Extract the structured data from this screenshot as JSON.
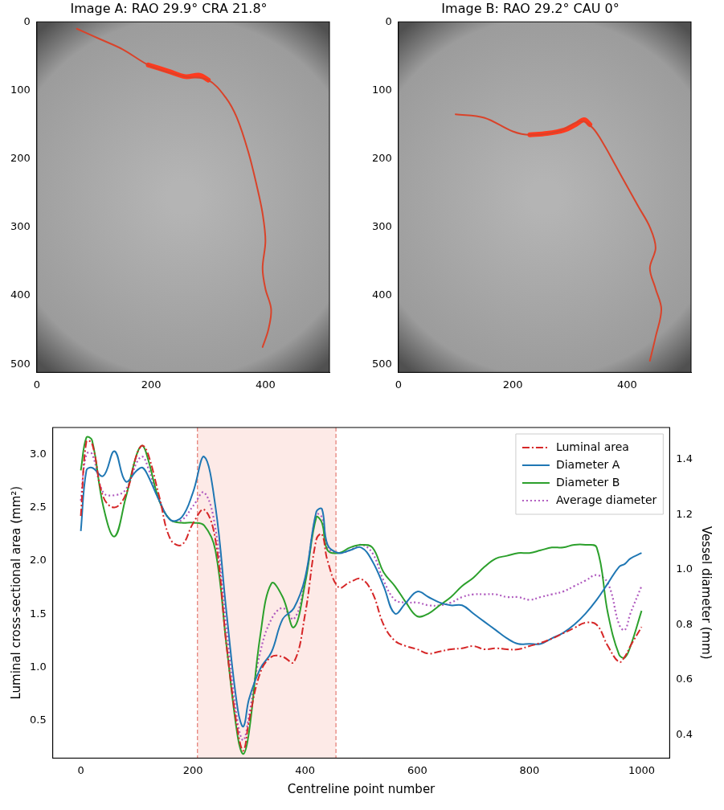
{
  "chart_data": [
    {
      "type": "line",
      "title": "Image A: RAO 29.9° CRA 21.8°",
      "xlim": [
        0,
        512
      ],
      "ylim": [
        512,
        0
      ],
      "xticks": [
        0,
        200,
        400
      ],
      "yticks": [
        0,
        100,
        200,
        300,
        400,
        500
      ],
      "grid": false,
      "series": [
        {
          "color": "#d9432a",
          "line_style": "solid",
          "x": [
            70,
            110,
            150,
            200,
            260,
            300,
            330,
            350,
            370,
            385,
            395,
            400,
            395,
            400,
            410,
            405,
            395
          ],
          "values": [
            10,
            25,
            40,
            65,
            80,
            85,
            110,
            140,
            190,
            240,
            280,
            320,
            360,
            390,
            420,
            450,
            475
          ]
        },
        {
          "color": "#ff3b1f",
          "line_style": "thick",
          "x": [
            195,
            230,
            260,
            285,
            300
          ],
          "values": [
            63,
            72,
            80,
            78,
            85
          ]
        }
      ]
    },
    {
      "type": "line",
      "title": "Image B: RAO 29.2° CAU 0°",
      "xlim": [
        0,
        512
      ],
      "ylim": [
        512,
        0
      ],
      "xticks": [
        0,
        200,
        400
      ],
      "yticks": [
        0,
        100,
        200,
        300,
        400,
        500
      ],
      "grid": false,
      "series": [
        {
          "color": "#d9432a",
          "line_style": "solid",
          "x": [
            100,
            150,
            200,
            230,
            280,
            320,
            340,
            360,
            380,
            400,
            420,
            440,
            450,
            440,
            450,
            460,
            450,
            440
          ],
          "values": [
            135,
            140,
            160,
            165,
            160,
            145,
            155,
            180,
            210,
            240,
            270,
            300,
            330,
            360,
            390,
            420,
            460,
            495
          ]
        },
        {
          "color": "#ff3b1f",
          "line_style": "thick",
          "x": [
            230,
            260,
            290,
            310,
            325,
            335
          ],
          "values": [
            165,
            163,
            158,
            150,
            143,
            150
          ]
        }
      ]
    },
    {
      "type": "line",
      "x_label": "Centreline point number",
      "y_label": "Luminal cross-sectional area (mm²)",
      "y2_label": "Vessel diameter (mm)",
      "xlim": [
        -50,
        1050
      ],
      "xticks": [
        0,
        200,
        400,
        600,
        800,
        1000
      ],
      "ylim": [
        0.15,
        3.25
      ],
      "yticks": [
        0.5,
        {
          "value": 1,
          "label": "1.0"
        },
        1.5,
        {
          "value": 2,
          "label": "2.0"
        },
        2.5,
        {
          "value": 3,
          "label": "3.0"
        }
      ],
      "y2lim": [
        0.315,
        1.516
      ],
      "y2ticks": [
        0.4,
        0.6,
        0.8,
        {
          "value": 1,
          "label": "1.0"
        },
        1.2,
        1.4
      ],
      "grid": false,
      "legend": "upper right",
      "highlight": [
        208,
        455
      ],
      "x": [
        0,
        10,
        20,
        40,
        60,
        80,
        100,
        110,
        120,
        140,
        160,
        180,
        200,
        220,
        240,
        260,
        280,
        290,
        300,
        320,
        340,
        360,
        380,
        400,
        420,
        430,
        440,
        460,
        480,
        500,
        520,
        540,
        560,
        580,
        600,
        620,
        640,
        660,
        680,
        700,
        720,
        740,
        760,
        780,
        800,
        820,
        840,
        860,
        880,
        900,
        920,
        940,
        960,
        970,
        980,
        1000
      ],
      "series": [
        {
          "name": "Luminal area",
          "color": "#d62728",
          "line_style": "dashdot",
          "values": [
            2.42,
            3.12,
            3.1,
            2.6,
            2.5,
            2.62,
            3.0,
            3.08,
            3.0,
            2.6,
            2.2,
            2.15,
            2.35,
            2.48,
            2.2,
            1.2,
            0.4,
            0.22,
            0.5,
            0.95,
            1.1,
            1.1,
            1.05,
            1.5,
            2.2,
            2.25,
            2.0,
            1.75,
            1.8,
            1.83,
            1.7,
            1.4,
            1.25,
            1.2,
            1.17,
            1.13,
            1.15,
            1.17,
            1.18,
            1.2,
            1.17,
            1.18,
            1.17,
            1.17,
            1.2,
            1.23,
            1.27,
            1.32,
            1.37,
            1.42,
            1.4,
            1.2,
            1.05,
            1.1,
            1.2,
            1.38
          ]
        },
        {
          "name": "Diameter A",
          "color": "#1f77b4",
          "line_style": "solid",
          "axis": "y2",
          "values": [
            1.14,
            1.36,
            1.37,
            1.34,
            1.43,
            1.32,
            1.36,
            1.37,
            1.34,
            1.25,
            1.18,
            1.19,
            1.28,
            1.41,
            1.23,
            0.84,
            0.49,
            0.43,
            0.53,
            0.64,
            0.7,
            0.82,
            0.86,
            0.97,
            1.21,
            1.22,
            1.09,
            1.06,
            1.07,
            1.08,
            1.03,
            0.94,
            0.84,
            0.88,
            0.92,
            0.9,
            0.88,
            0.87,
            0.87,
            0.84,
            0.81,
            0.78,
            0.75,
            0.73,
            0.73,
            0.73,
            0.75,
            0.77,
            0.8,
            0.84,
            0.89,
            0.95,
            1.01,
            1.02,
            1.04,
            1.06
          ]
        },
        {
          "name": "Diameter B",
          "color": "#2ca02c",
          "line_style": "solid",
          "axis": "y2",
          "values": [
            1.36,
            1.48,
            1.47,
            1.23,
            1.12,
            1.26,
            1.42,
            1.45,
            1.4,
            1.25,
            1.18,
            1.17,
            1.17,
            1.16,
            1.07,
            0.72,
            0.39,
            0.33,
            0.41,
            0.76,
            0.95,
            0.9,
            0.79,
            0.95,
            1.19,
            1.17,
            1.07,
            1.06,
            1.08,
            1.09,
            1.08,
            0.99,
            0.94,
            0.88,
            0.83,
            0.84,
            0.87,
            0.9,
            0.94,
            0.97,
            1.01,
            1.04,
            1.05,
            1.06,
            1.06,
            1.07,
            1.08,
            1.08,
            1.09,
            1.09,
            1.08,
            0.84,
            0.69,
            0.68,
            0.72,
            0.85
          ]
        },
        {
          "name": "Average diameter",
          "color": "#b05bbf",
          "line_style": "dotted",
          "axis": "y2",
          "values": [
            1.25,
            1.42,
            1.42,
            1.28,
            1.27,
            1.29,
            1.39,
            1.41,
            1.37,
            1.25,
            1.18,
            1.18,
            1.23,
            1.28,
            1.15,
            0.78,
            0.44,
            0.38,
            0.47,
            0.7,
            0.82,
            0.86,
            0.82,
            0.96,
            1.2,
            1.19,
            1.08,
            1.06,
            1.07,
            1.09,
            1.06,
            0.96,
            0.89,
            0.88,
            0.88,
            0.87,
            0.87,
            0.88,
            0.9,
            0.91,
            0.91,
            0.91,
            0.9,
            0.9,
            0.89,
            0.9,
            0.91,
            0.92,
            0.94,
            0.96,
            0.98,
            0.95,
            0.8,
            0.78,
            0.84,
            0.94
          ]
        }
      ]
    }
  ]
}
